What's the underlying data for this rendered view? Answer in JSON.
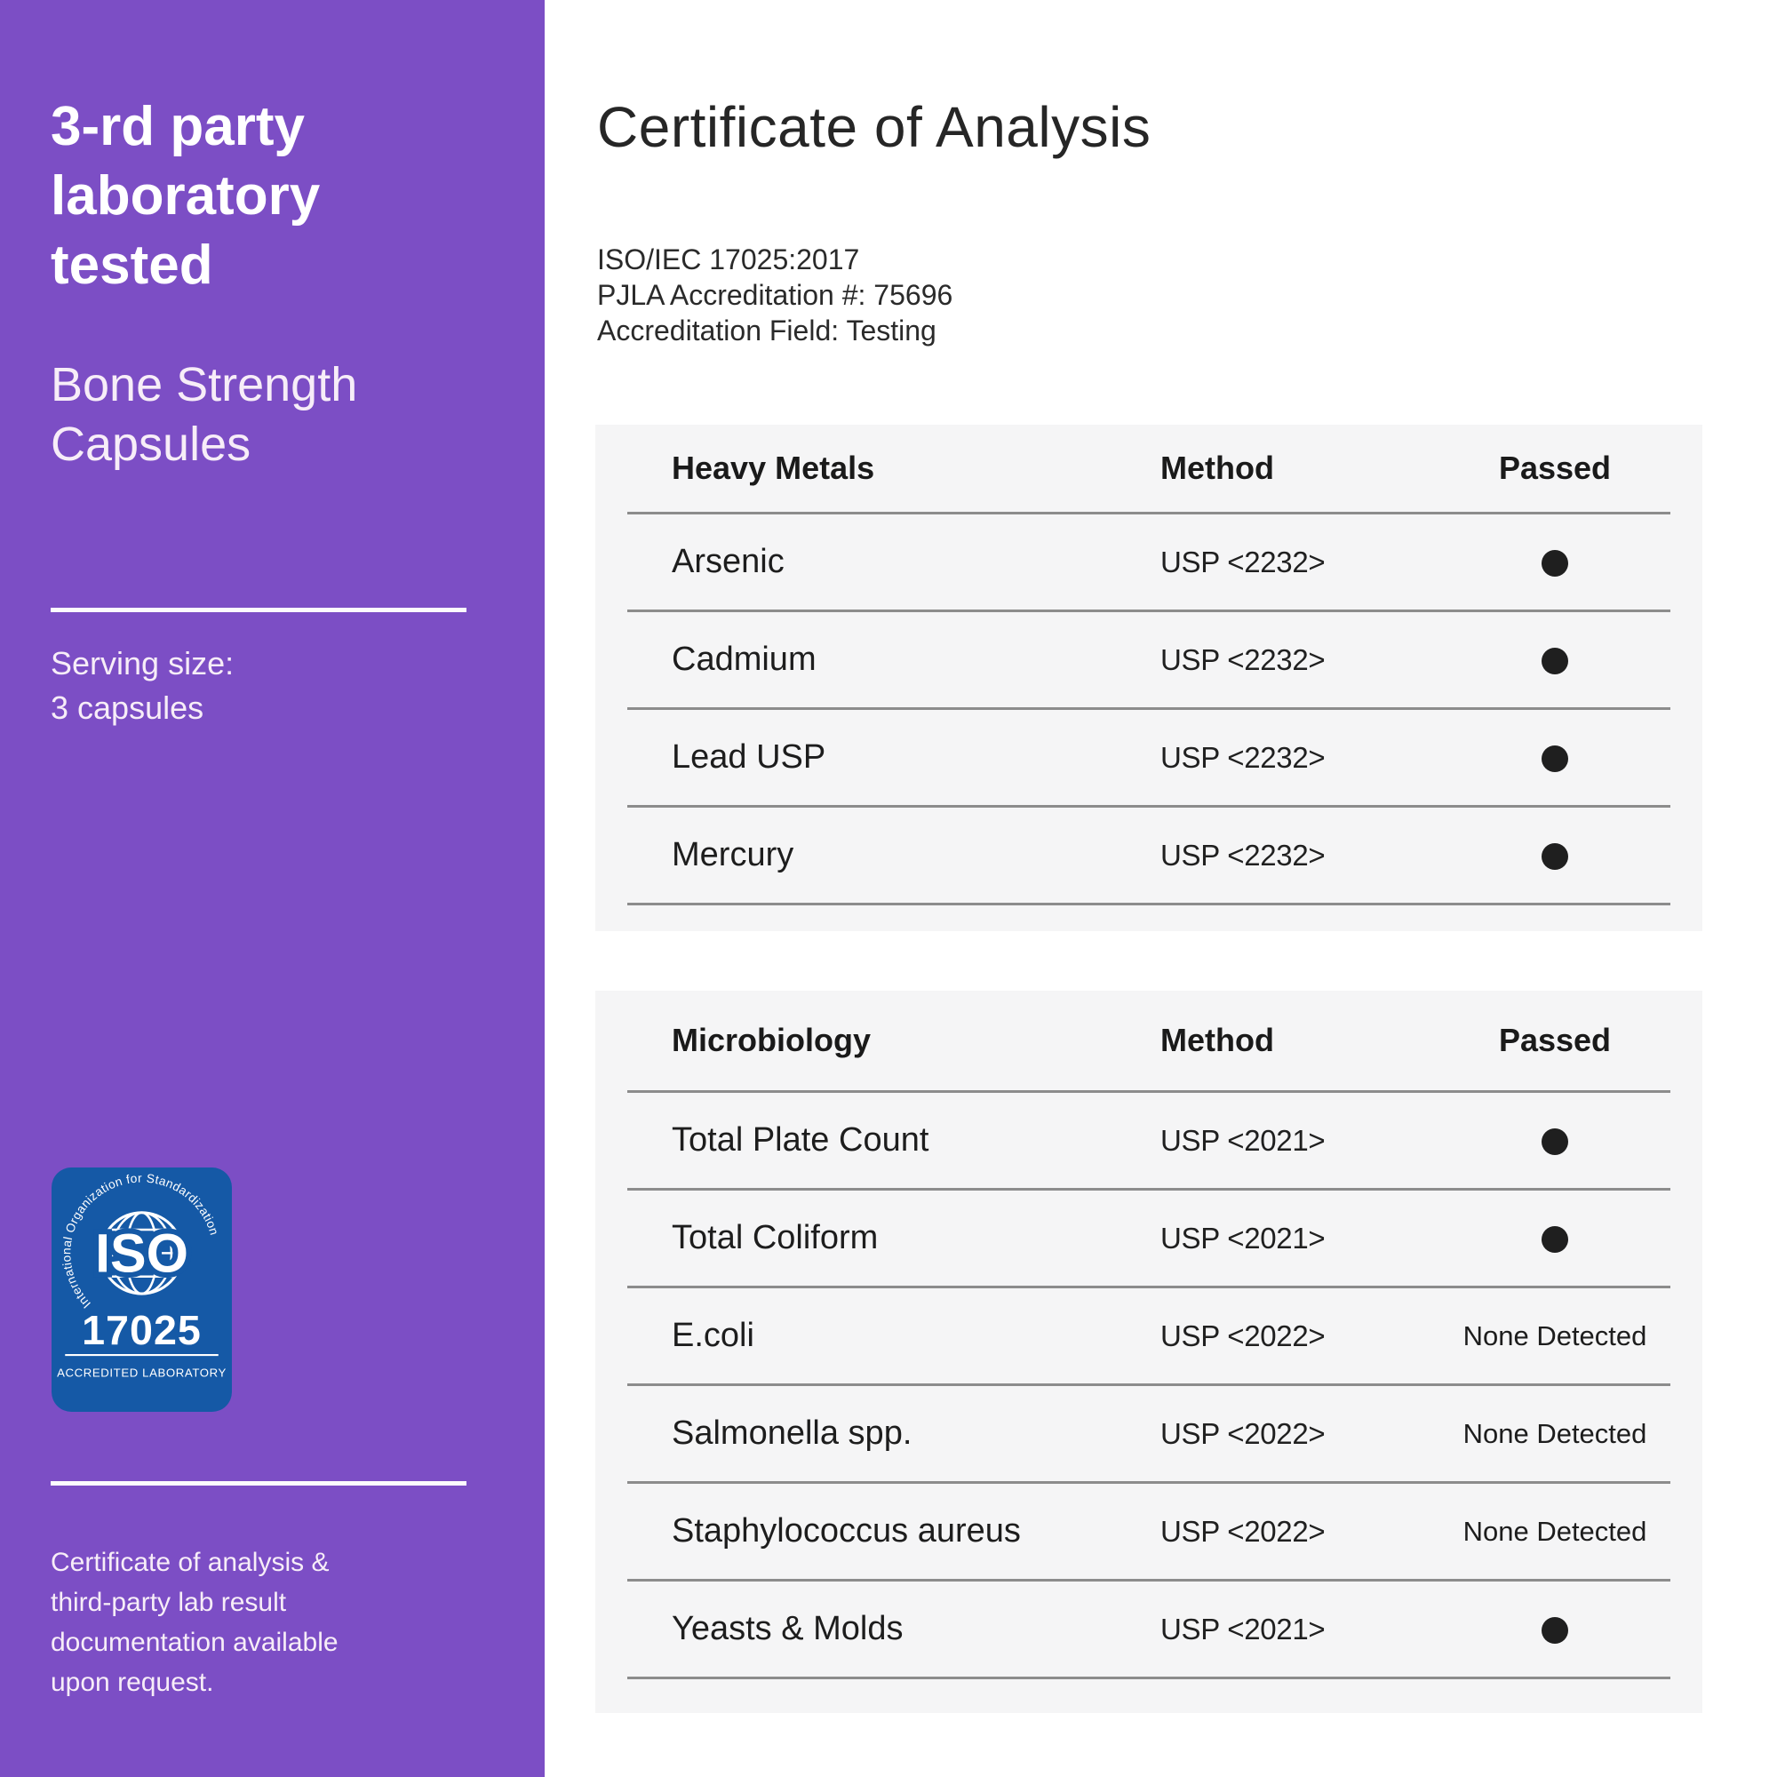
{
  "colors": {
    "sidebar_bg": "#7C4EC5",
    "badge_bg": "#1559A6",
    "panel_bg": "#F5F5F6",
    "divider": "#8C8C8C",
    "dot": "#1F1F1F"
  },
  "sidebar": {
    "heading_lines": [
      "3-rd party",
      "laboratory",
      "tested"
    ],
    "product_lines": [
      "Bone Strength",
      "Capsules"
    ],
    "serving_lines": [
      "Serving size:",
      "3 capsules"
    ],
    "note_lines": [
      "Certificate of analysis &",
      "third-party lab result",
      "documentation available",
      "upon request."
    ],
    "badge": {
      "arc_text": "International Organization for Standardization",
      "iso_label": "ISO",
      "standard_number": "17025",
      "caption": "ACCREDITED LABORATORY"
    }
  },
  "main": {
    "title": "Certificate of Analysis",
    "info_lines": [
      "ISO/IEC 17025:2017",
      "PJLA Accreditation #: 75696",
      "Accreditation Field: Testing"
    ],
    "tables": [
      {
        "headers": {
          "name": "Heavy Metals",
          "method": "Method",
          "passed": "Passed"
        },
        "rows": [
          {
            "name": "Arsenic",
            "method": "USP <2232>",
            "result": "dot"
          },
          {
            "name": "Cadmium",
            "method": "USP <2232>",
            "result": "dot"
          },
          {
            "name": "Lead USP",
            "method": "USP <2232>",
            "result": "dot"
          },
          {
            "name": "Mercury",
            "method": "USP <2232>",
            "result": "dot"
          }
        ]
      },
      {
        "headers": {
          "name": "Microbiology",
          "method": "Method",
          "passed": "Passed"
        },
        "rows": [
          {
            "name": "Total Plate Count",
            "method": "USP <2021>",
            "result": "dot"
          },
          {
            "name": "Total Coliform",
            "method": "USP <2021>",
            "result": "dot"
          },
          {
            "name": "E.coli",
            "method": "USP <2022>",
            "result": "None Detected"
          },
          {
            "name": "Salmonella spp.",
            "method": "USP <2022>",
            "result": "None Detected"
          },
          {
            "name": "Staphylococcus aureus",
            "method": "USP <2022>",
            "result": "None Detected"
          },
          {
            "name": "Yeasts & Molds",
            "method": "USP <2021>",
            "result": "dot"
          }
        ]
      }
    ]
  }
}
